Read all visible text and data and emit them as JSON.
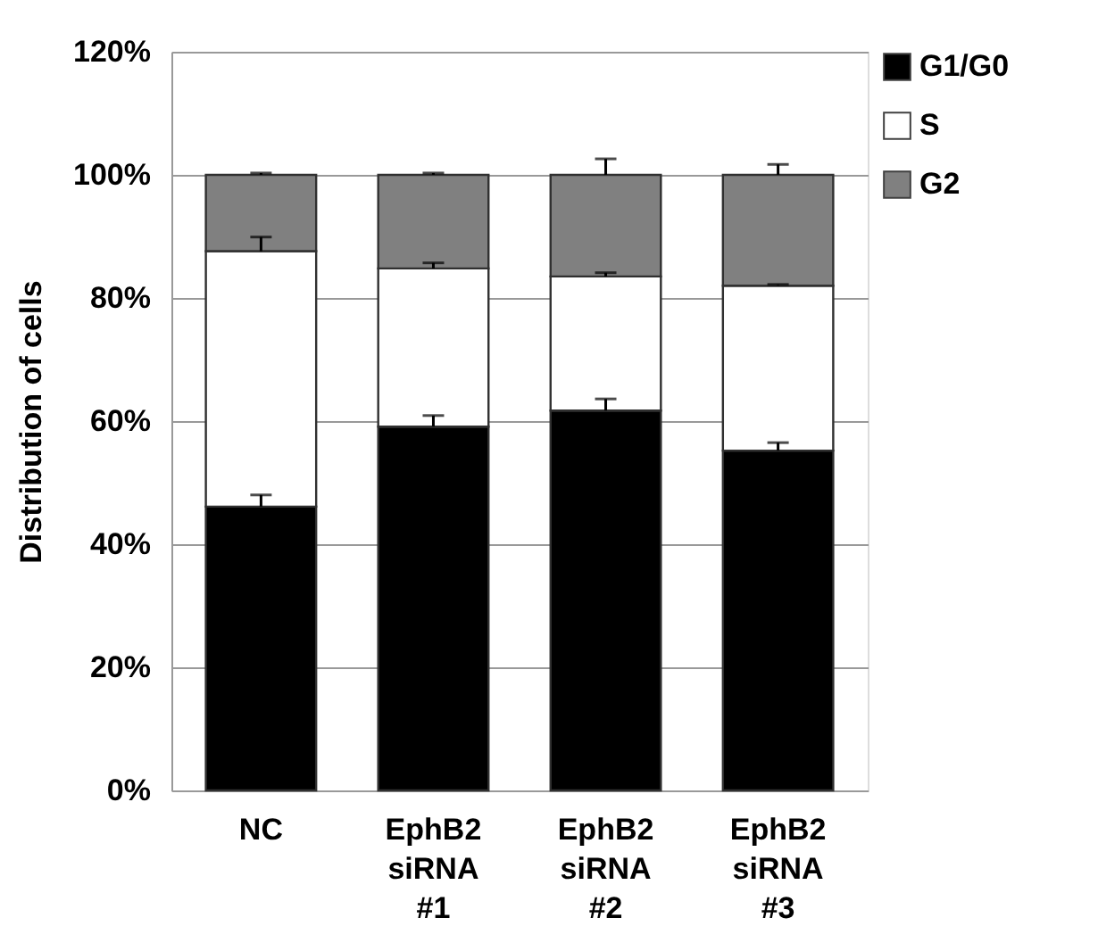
{
  "chart_data": {
    "type": "bar",
    "stacked": true,
    "ylabel": "Distribution of cells",
    "categories": [
      "NC",
      "EphB2 siRNA #1",
      "EphB2 siRNA #2",
      "EphB2 siRNA #3"
    ],
    "series": [
      {
        "name": "G1/G0",
        "color": "#000000",
        "values": [
          46.1,
          59.1,
          61.7,
          55.2
        ],
        "errors": [
          1.9,
          1.8,
          1.9,
          1.3
        ]
      },
      {
        "name": "S",
        "color": "#ffffff",
        "values": [
          41.5,
          25.7,
          21.8,
          26.8
        ],
        "errors": [
          2.3,
          0.9,
          0.6,
          0.2
        ]
      },
      {
        "name": "G2",
        "color": "#808080",
        "values": [
          12.4,
          15.2,
          16.5,
          18.0
        ],
        "errors": [
          0.3,
          0.3,
          2.6,
          1.7
        ]
      }
    ],
    "ylim": [
      0,
      120
    ],
    "yticks": [
      {
        "value": 0,
        "label": "0%"
      },
      {
        "value": 20,
        "label": "20%"
      },
      {
        "value": 40,
        "label": "40%"
      },
      {
        "value": 60,
        "label": "60%"
      },
      {
        "value": 80,
        "label": "80%"
      },
      {
        "value": 100,
        "label": "100%"
      },
      {
        "value": 120,
        "label": "120%"
      }
    ],
    "grid": "y",
    "legend": "right"
  }
}
